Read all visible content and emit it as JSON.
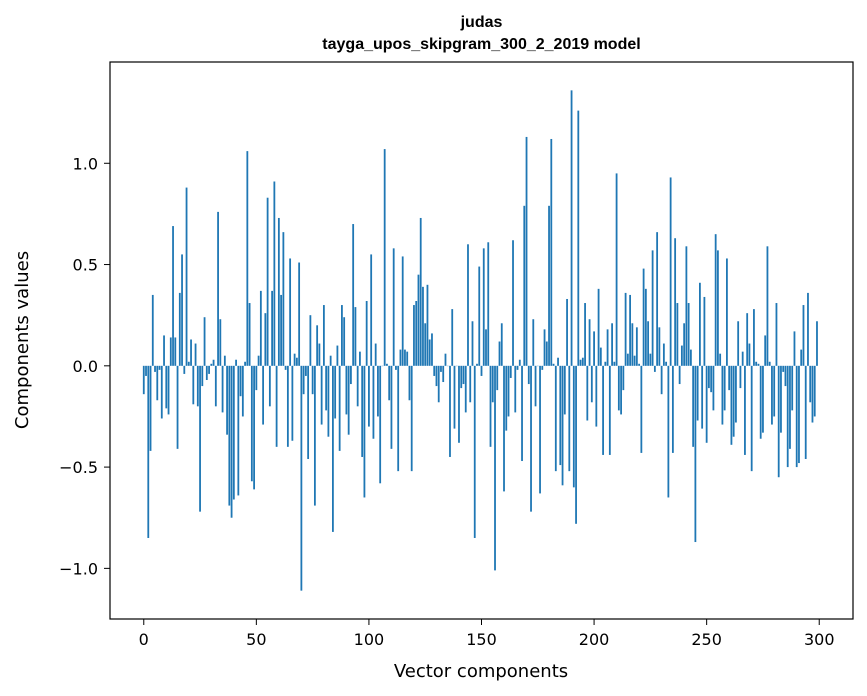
{
  "chart_data": {
    "type": "bar",
    "title": "judas",
    "subtitle": "tayga_upos_skipgram_300_2_2019 model",
    "xlabel": "Vector components",
    "ylabel": "Components values",
    "xlim": [
      -15,
      315
    ],
    "ylim": [
      -1.25,
      1.5
    ],
    "xticks": [
      0,
      50,
      100,
      150,
      200,
      250,
      300
    ],
    "xtick_labels": [
      "0",
      "50",
      "100",
      "150",
      "200",
      "250",
      "300"
    ],
    "yticks": [
      -1.0,
      -0.5,
      0.0,
      0.5,
      1.0
    ],
    "ytick_labels": [
      "−1.0",
      "−0.5",
      "0.0",
      "0.5",
      "1.0"
    ],
    "grid": false,
    "bar_color": "#1f77b4",
    "values": [
      -0.14,
      -0.05,
      -0.85,
      -0.42,
      0.35,
      -0.03,
      -0.17,
      -0.02,
      -0.26,
      0.15,
      -0.21,
      -0.24,
      0.14,
      0.69,
      0.14,
      -0.41,
      0.36,
      0.55,
      -0.04,
      0.88,
      0.02,
      0.13,
      -0.19,
      0.11,
      -0.2,
      -0.72,
      -0.1,
      0.24,
      -0.07,
      -0.04,
      0.01,
      0.03,
      -0.2,
      0.76,
      0.23,
      -0.23,
      0.05,
      -0.34,
      -0.69,
      -0.75,
      -0.66,
      0.03,
      -0.64,
      -0.15,
      -0.25,
      0.02,
      1.06,
      0.31,
      -0.57,
      -0.61,
      -0.12,
      0.05,
      0.37,
      -0.29,
      0.26,
      0.83,
      -0.2,
      0.37,
      0.91,
      -0.4,
      0.73,
      0.35,
      0.66,
      -0.02,
      -0.4,
      0.53,
      -0.37,
      0.06,
      0.04,
      0.51,
      -1.11,
      -0.14,
      -0.05,
      -0.46,
      0.25,
      -0.14,
      -0.69,
      0.2,
      0.11,
      -0.29,
      0.3,
      -0.22,
      -0.35,
      0.05,
      -0.82,
      -0.26,
      0.1,
      -0.42,
      0.3,
      0.24,
      -0.24,
      -0.34,
      -0.09,
      0.7,
      0.29,
      -0.2,
      0.07,
      -0.45,
      -0.65,
      0.32,
      -0.3,
      0.55,
      -0.36,
      0.11,
      -0.25,
      -0.58,
      0.0,
      1.07,
      0.01,
      -0.17,
      -0.41,
      0.58,
      -0.02,
      -0.52,
      0.08,
      0.54,
      0.08,
      0.07,
      -0.17,
      -0.52,
      0.3,
      0.32,
      0.45,
      0.73,
      0.39,
      0.21,
      0.4,
      0.13,
      0.16,
      -0.05,
      -0.1,
      -0.18,
      -0.03,
      -0.08,
      0.06,
      0.0,
      -0.45,
      0.28,
      -0.31,
      0.0,
      -0.38,
      -0.11,
      -0.09,
      -0.23,
      0.6,
      -0.18,
      0.22,
      -0.85,
      0.01,
      0.49,
      -0.05,
      0.58,
      0.18,
      0.61,
      -0.4,
      -0.18,
      -1.01,
      -0.12,
      0.12,
      0.21,
      -0.62,
      -0.32,
      -0.25,
      -0.06,
      0.62,
      -0.23,
      -0.02,
      0.03,
      -0.47,
      0.79,
      1.13,
      -0.09,
      -0.72,
      0.23,
      -0.2,
      0.0,
      -0.63,
      -0.02,
      0.18,
      0.12,
      0.79,
      1.12,
      0.01,
      -0.52,
      0.04,
      -0.49,
      -0.59,
      -0.24,
      0.33,
      -0.52,
      1.36,
      -0.6,
      -0.78,
      1.26,
      0.03,
      0.04,
      0.31,
      -0.27,
      0.23,
      -0.18,
      0.17,
      -0.3,
      0.38,
      0.09,
      -0.44,
      0.02,
      0.18,
      -0.44,
      0.21,
      0.02,
      0.95,
      -0.22,
      -0.24,
      -0.12,
      0.36,
      0.06,
      0.35,
      0.21,
      0.05,
      0.19,
      0.01,
      -0.43,
      0.48,
      0.38,
      0.22,
      0.06,
      0.57,
      -0.03,
      0.66,
      0.19,
      -0.14,
      0.11,
      0.02,
      -0.65,
      0.93,
      -0.43,
      0.63,
      0.31,
      -0.09,
      0.1,
      0.21,
      0.59,
      0.31,
      0.08,
      -0.4,
      -0.87,
      -0.27,
      0.41,
      -0.31,
      0.34,
      -0.38,
      -0.11,
      -0.13,
      -0.22,
      0.65,
      0.57,
      0.06,
      -0.29,
      -0.22,
      0.53,
      -0.12,
      -0.39,
      -0.35,
      -0.28,
      0.22,
      -0.11,
      0.07,
      -0.44,
      0.26,
      0.11,
      -0.52,
      0.28,
      0.02,
      0.01,
      -0.36,
      -0.33,
      0.15,
      0.59,
      0.02,
      -0.29,
      -0.25,
      0.31,
      -0.55,
      -0.33,
      -0.03,
      -0.1,
      -0.5,
      -0.41,
      -0.22,
      0.17,
      -0.5,
      -0.48,
      0.08,
      0.3,
      -0.46,
      0.36,
      -0.18,
      -0.28,
      -0.25,
      0.22
    ]
  }
}
